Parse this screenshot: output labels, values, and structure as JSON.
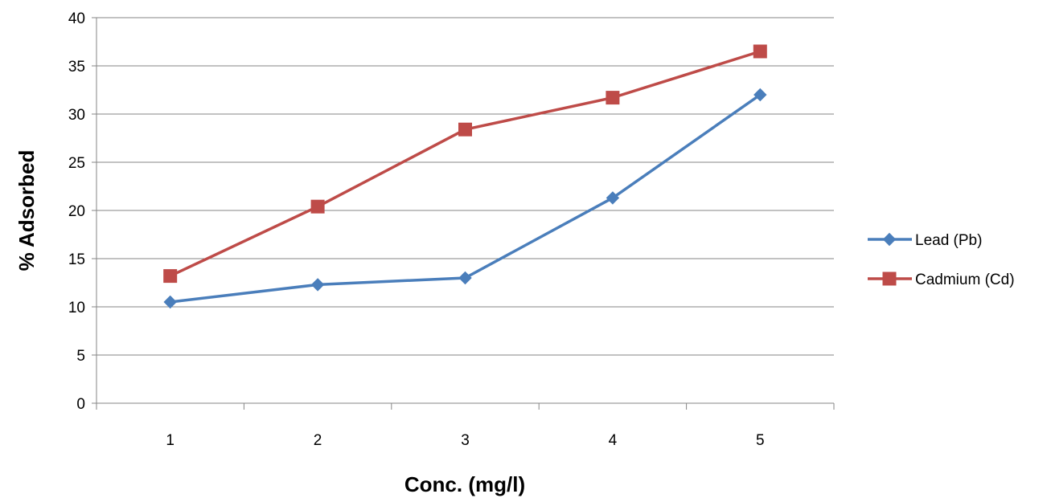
{
  "chart_data": {
    "type": "line",
    "categories": [
      "1",
      "2",
      "3",
      "4",
      "5"
    ],
    "x": [
      1,
      2,
      3,
      4,
      5
    ],
    "series": [
      {
        "name": "Lead (Pb)",
        "values": [
          10.5,
          12.3,
          13.0,
          21.3,
          32.0
        ],
        "color": "#4a7ebb",
        "marker": "diamond"
      },
      {
        "name": "Cadmium (Cd)",
        "values": [
          13.2,
          20.4,
          28.4,
          31.7,
          36.5
        ],
        "color": "#be4b48",
        "marker": "square"
      }
    ],
    "title": "",
    "xlabel": "Conc. (mg/l)",
    "ylabel": "% Adsorbed",
    "ylim": [
      0,
      40
    ],
    "yticks": [
      0,
      5,
      10,
      15,
      20,
      25,
      30,
      35,
      40
    ],
    "grid": true,
    "legend_position": "right"
  }
}
